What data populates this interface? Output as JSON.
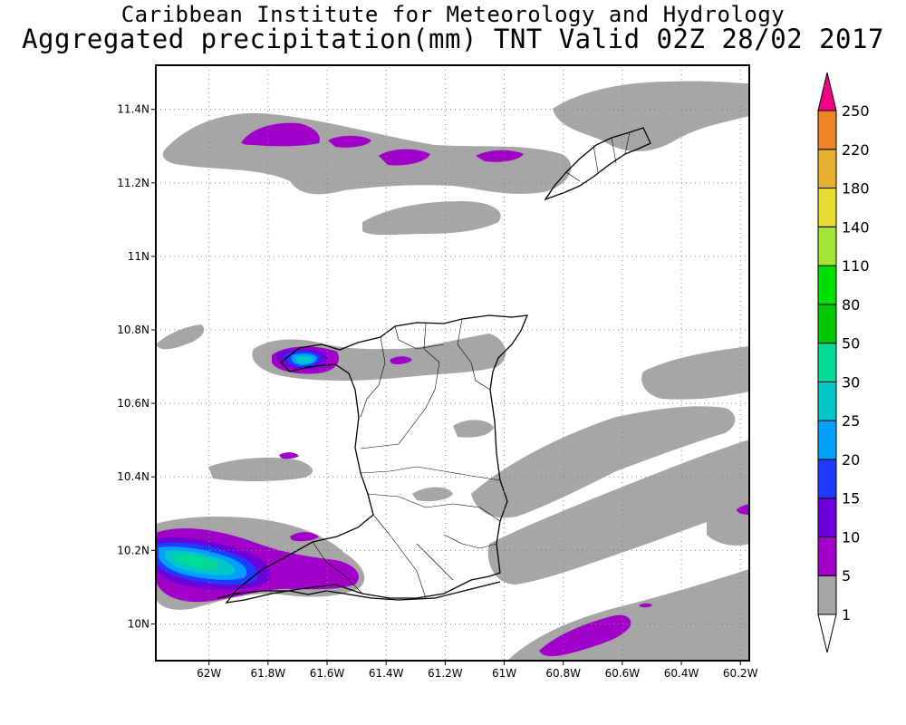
{
  "header": {
    "line1": "Caribbean Institute for Meteorology and Hydrology",
    "line2": "Aggregated precipitation(mm) TNT Valid 02Z 28/02 2017"
  },
  "axes": {
    "lon_ticks": [
      "62W",
      "61.8W",
      "61.6W",
      "61.4W",
      "61.2W",
      "61W",
      "60.8W",
      "60.6W",
      "60.4W",
      "60.2W"
    ],
    "lat_ticks": [
      "11.4N",
      "11.2N",
      "11N",
      "10.8N",
      "10.6N",
      "10.4N",
      "10.2N",
      "10N"
    ],
    "lon_values": [
      -62,
      -61.8,
      -61.6,
      -61.4,
      -61.2,
      -61,
      -60.8,
      -60.6,
      -60.4,
      -60.2
    ],
    "lat_values": [
      11.4,
      11.2,
      11,
      10.8,
      10.6,
      10.4,
      10.2,
      10
    ],
    "lon_range": [
      -62.18,
      -60.17
    ],
    "lat_range": [
      9.9,
      11.52
    ],
    "grid": "dotted"
  },
  "colorbar": {
    "labels": [
      "1",
      "5",
      "10",
      "15",
      "20",
      "25",
      "30",
      "50",
      "80",
      "110",
      "140",
      "180",
      "220",
      "250"
    ],
    "colors": [
      "#a6a6a6",
      "#a000c8",
      "#6e00dc",
      "#1e3cff",
      "#00a0ff",
      "#00c8c8",
      "#00dc96",
      "#00c800",
      "#00e000",
      "#a0e632",
      "#e6dc32",
      "#e6af2d",
      "#f08228",
      "#fa3c3c",
      "#f00082"
    ]
  }
}
